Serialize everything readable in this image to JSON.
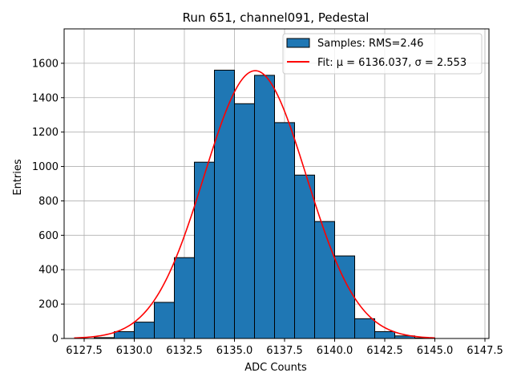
{
  "chart_data": {
    "type": "bar",
    "title": "Run 651, channel091, Pedestal",
    "xlabel": "ADC Counts",
    "ylabel": "Entries",
    "xlim": [
      6126.5,
      6147.7
    ],
    "ylim": [
      0,
      1800
    ],
    "xticks": [
      6127.5,
      6130.0,
      6132.5,
      6135.0,
      6137.5,
      6140.0,
      6142.5,
      6145.0,
      6147.5
    ],
    "xtick_labels": [
      "6127.5",
      "6130.0",
      "6132.5",
      "6135.0",
      "6137.5",
      "6140.0",
      "6142.5",
      "6145.0",
      "6147.5"
    ],
    "yticks": [
      0,
      200,
      400,
      600,
      800,
      1000,
      1200,
      1400,
      1600
    ],
    "ytick_labels": [
      "0",
      "200",
      "400",
      "600",
      "800",
      "1000",
      "1200",
      "1400",
      "1600"
    ],
    "grid": true,
    "legend_position": "top-right",
    "histogram": {
      "name": "Samples: RMS=2.46",
      "color": "#1f77b4",
      "edge_color": "#000000",
      "bin_width": 1,
      "bins": [
        {
          "x0": 6128,
          "count": 5
        },
        {
          "x0": 6129,
          "count": 40
        },
        {
          "x0": 6130,
          "count": 95
        },
        {
          "x0": 6131,
          "count": 210
        },
        {
          "x0": 6132,
          "count": 470
        },
        {
          "x0": 6133,
          "count": 1025
        },
        {
          "x0": 6134,
          "count": 1560
        },
        {
          "x0": 6135,
          "count": 1365
        },
        {
          "x0": 6136,
          "count": 1530
        },
        {
          "x0": 6137,
          "count": 1255
        },
        {
          "x0": 6138,
          "count": 950
        },
        {
          "x0": 6139,
          "count": 680
        },
        {
          "x0": 6140,
          "count": 480
        },
        {
          "x0": 6141,
          "count": 115
        },
        {
          "x0": 6142,
          "count": 40
        },
        {
          "x0": 6143,
          "count": 15
        },
        {
          "x0": 6144,
          "count": 3
        }
      ]
    },
    "fit": {
      "name": "Fit: μ = 6136.037, σ = 2.553",
      "color": "#ff0000",
      "mu": 6136.037,
      "sigma": 2.553,
      "peak": 1557,
      "x_range": [
        6127.0,
        6145.0
      ]
    }
  }
}
